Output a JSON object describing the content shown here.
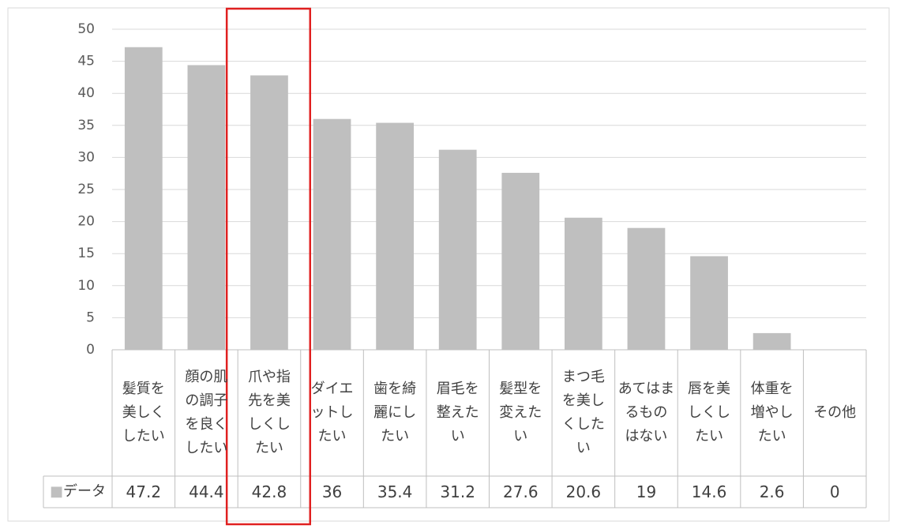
{
  "chart_data": {
    "type": "bar",
    "categories": [
      "髪質を美しくしたい",
      "顔の肌の調子を良くしたい",
      "爪や指先を美しくしたい",
      "ダイエットしたい",
      "歯を綺麗にしたい",
      "眉毛を整えたい",
      "髪型を変えたい",
      "まつ毛を美しくしたい",
      "あてはまるものはない",
      "唇を美しくしたい",
      "体重を増やしたい",
      "その他"
    ],
    "series": [
      {
        "name": "データ",
        "color": "#bfbfbf",
        "values": [
          47.2,
          44.4,
          42.8,
          36,
          35.4,
          31.2,
          27.6,
          20.6,
          19,
          14.6,
          2.6,
          0
        ]
      }
    ],
    "ylim": [
      0,
      50
    ],
    "yticks": [
      0,
      5,
      10,
      15,
      20,
      25,
      30,
      35,
      40,
      45,
      50
    ],
    "grid": true
  }
}
